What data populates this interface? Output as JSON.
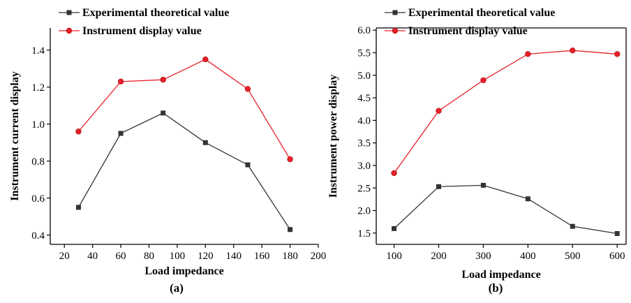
{
  "colors": {
    "series_1": "#333333",
    "series_2": "#e8202a",
    "marker_edge_2": "#b01818"
  },
  "chart_data": [
    {
      "type": "line",
      "caption": "(a)",
      "xlabel": "Load impedance",
      "ylabel": "Instrument current display",
      "xlim": [
        10,
        200
      ],
      "ylim": [
        0.35,
        1.52
      ],
      "xticks": [
        20,
        40,
        60,
        80,
        100,
        120,
        140,
        160,
        180,
        200
      ],
      "yticks": [
        0.4,
        0.6,
        0.8,
        1.0,
        1.2,
        1.4
      ],
      "x": [
        30,
        60,
        90,
        120,
        150,
        180
      ],
      "series": [
        {
          "name": "Experimental theoretical value",
          "values": [
            0.55,
            0.95,
            1.06,
            0.9,
            0.78,
            0.43
          ],
          "marker": "square"
        },
        {
          "name": "Instrument display value",
          "values": [
            0.96,
            1.23,
            1.24,
            1.35,
            1.19,
            0.81
          ],
          "marker": "circle"
        }
      ],
      "legend": "top-left",
      "grid": false
    },
    {
      "type": "line",
      "caption": "(b)",
      "xlabel": "Load impedance",
      "ylabel": "Instrument power display",
      "xlim": [
        60,
        620
      ],
      "ylim": [
        1.25,
        6.05
      ],
      "xticks": [
        100,
        200,
        300,
        400,
        500,
        600
      ],
      "yticks": [
        "1.5",
        "2.0",
        "2.5",
        "3.0",
        "3.5",
        "4.0",
        "4.5",
        "5.0",
        "5.5",
        "6.0"
      ],
      "x": [
        100,
        200,
        300,
        400,
        500,
        600
      ],
      "series": [
        {
          "name": "Experimental theoretical value",
          "values": [
            1.6,
            2.53,
            2.56,
            2.26,
            1.65,
            1.49
          ],
          "marker": "square"
        },
        {
          "name": "Instrument display value",
          "values": [
            2.83,
            4.21,
            4.89,
            5.47,
            5.55,
            5.47
          ],
          "marker": "circle"
        }
      ],
      "legend": "top-left",
      "grid": false
    }
  ]
}
